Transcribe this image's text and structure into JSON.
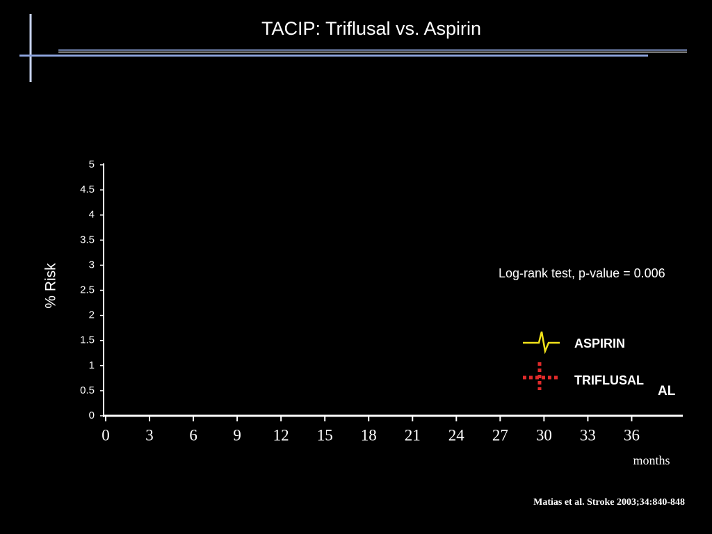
{
  "chart_data": {
    "type": "line",
    "title": "TACIP: Triflusal vs. Aspirin",
    "ylabel": "% Risk",
    "xlabel": "months",
    "annotations": [
      "Log-rank test, p-value =  0.006",
      "AL"
    ],
    "source": "Matias et al. Stroke 2003;34:840-848",
    "xlim": [
      0,
      39.5
    ],
    "xticks": [
      0,
      3,
      6,
      9,
      12,
      15,
      18,
      21,
      24,
      27,
      30,
      33,
      36
    ],
    "ylim": [
      0,
      5
    ],
    "yticks": [
      0,
      0.5,
      1,
      1.5,
      2,
      2.5,
      3,
      3.5,
      4,
      4.5,
      5
    ],
    "series": [
      {
        "name": "ASPIRIN",
        "color": "#f2e21a"
      },
      {
        "name": "TRIFLUSAL",
        "color": "#e02a2a"
      }
    ]
  }
}
